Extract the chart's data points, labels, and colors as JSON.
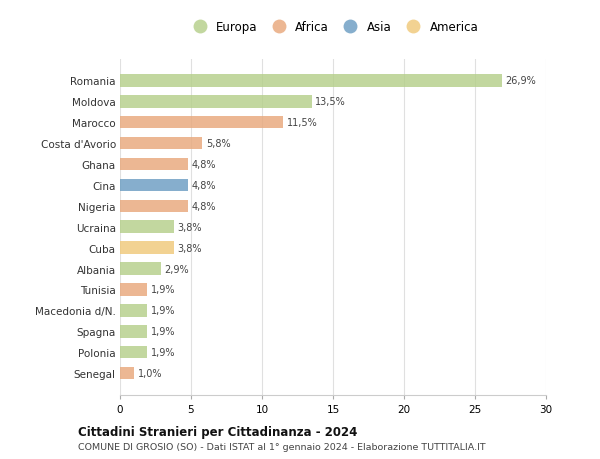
{
  "countries": [
    "Romania",
    "Moldova",
    "Marocco",
    "Costa d'Avorio",
    "Ghana",
    "Cina",
    "Nigeria",
    "Ucraina",
    "Cuba",
    "Albania",
    "Tunisia",
    "Macedonia d/N.",
    "Spagna",
    "Polonia",
    "Senegal"
  ],
  "values": [
    26.9,
    13.5,
    11.5,
    5.8,
    4.8,
    4.8,
    4.8,
    3.8,
    3.8,
    2.9,
    1.9,
    1.9,
    1.9,
    1.9,
    1.0
  ],
  "labels": [
    "26,9%",
    "13,5%",
    "11,5%",
    "5,8%",
    "4,8%",
    "4,8%",
    "4,8%",
    "3,8%",
    "3,8%",
    "2,9%",
    "1,9%",
    "1,9%",
    "1,9%",
    "1,9%",
    "1,0%"
  ],
  "colors": [
    "#b5cf8a",
    "#b5cf8a",
    "#e8a87c",
    "#e8a87c",
    "#e8a87c",
    "#6b9dc2",
    "#e8a87c",
    "#b5cf8a",
    "#f0c97a",
    "#b5cf8a",
    "#e8a87c",
    "#b5cf8a",
    "#b5cf8a",
    "#b5cf8a",
    "#e8a87c"
  ],
  "legend_labels": [
    "Europa",
    "Africa",
    "Asia",
    "America"
  ],
  "legend_colors": [
    "#b5cf8a",
    "#e8a87c",
    "#6b9dc2",
    "#f0c97a"
  ],
  "title": "Cittadini Stranieri per Cittadinanza - 2024",
  "subtitle": "COMUNE DI GROSIO (SO) - Dati ISTAT al 1° gennaio 2024 - Elaborazione TUTTITALIA.IT",
  "xlim": [
    0,
    30
  ],
  "xticks": [
    0,
    5,
    10,
    15,
    20,
    25,
    30
  ],
  "background_color": "#ffffff",
  "grid_color": "#e0e0e0",
  "bar_alpha": 0.82,
  "bar_height": 0.6
}
